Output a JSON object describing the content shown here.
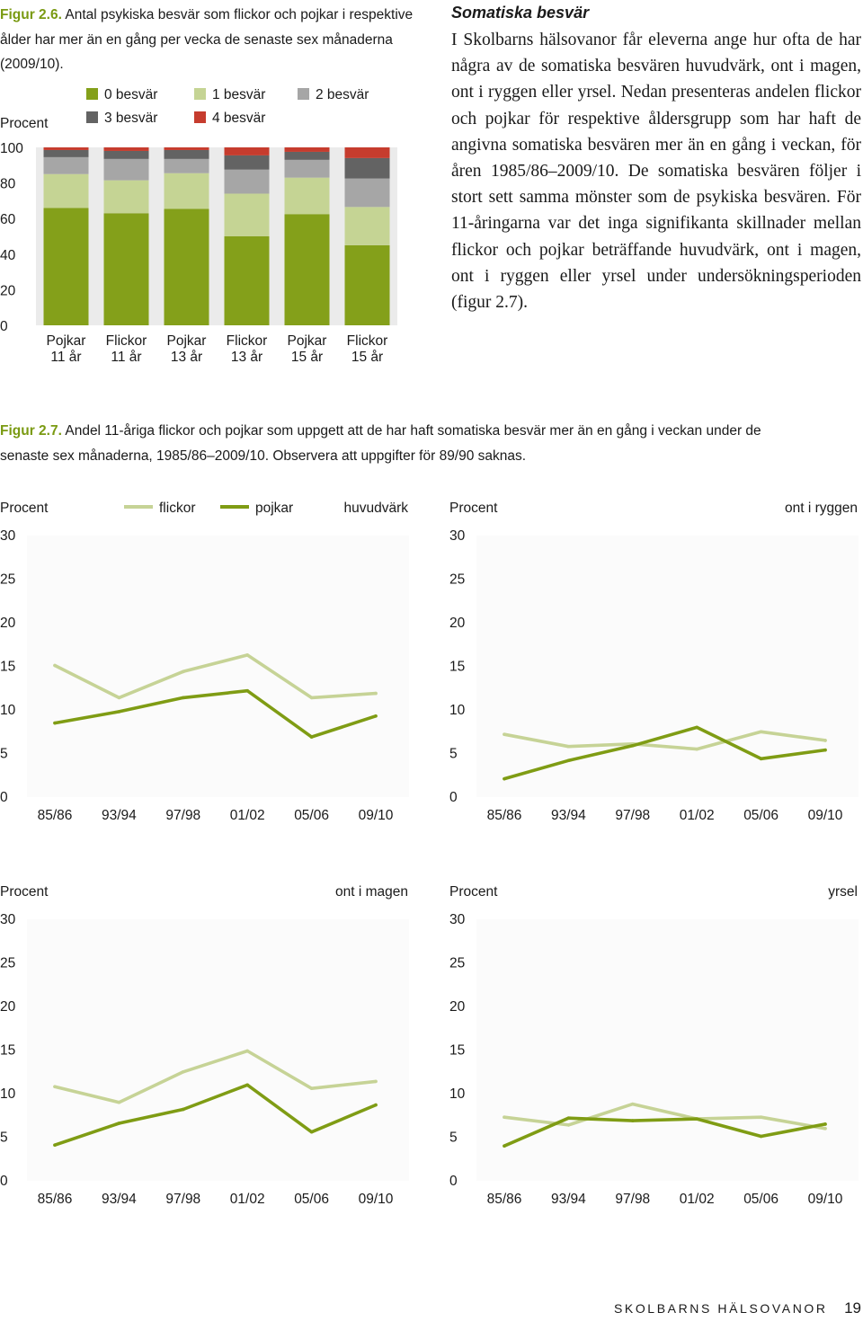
{
  "fig26": {
    "label": "Figur 2.6.",
    "caption": "Antal psykiska besvär som flickor och pojkar i respektive ålder har mer än en gång per vecka de senaste sex månaderna (2009/10)."
  },
  "article": {
    "heading": "Somatiska besvär",
    "body": "I Skolbarns hälsovanor får eleverna ange hur ofta de har några av de somatiska besvären huvudvärk, ont i magen, ont i ryggen eller yrsel. Nedan presenteras andelen flickor och pojkar för respektive åldersgrupp som har haft de angivna somatiska besvären mer än en gång i veckan, för åren 1985/86–2009/10. De somatiska besvären följer i stort sett samma mönster som de psykiska besvären. För 11-åringarna var det inga signifikanta skillnader mellan flickor och pojkar beträffande huvudvärk, ont i magen, ont i ryggen eller yrsel under undersökningsperioden (figur 2.7)."
  },
  "fig27": {
    "label": "Figur 2.7.",
    "caption": "Andel 11-åriga flickor och pojkar som uppgett att de har haft somatiska besvär mer än en gång i veckan under de senaste sex månaderna, 1985/86–2009/10. Observera att uppgifter för 89/90 saknas."
  },
  "colors": {
    "c0": "#84a01a",
    "c1": "#c5d494",
    "c2": "#a6a6a6",
    "c3": "#636363",
    "c4": "#c63c2e",
    "flickor": "#c6d396",
    "pojkar": "#7f9c14",
    "grid": "#ebebeb"
  },
  "line_legend": {
    "flickor": "flickor",
    "pojkar": "pojkar"
  },
  "chart_data": [
    {
      "type": "bar",
      "stacked": true,
      "title": "Figur 2.6.",
      "ylabel": "Procent",
      "ylim": [
        0,
        100
      ],
      "yticks": [
        0,
        20,
        40,
        60,
        80,
        100
      ],
      "categories": [
        {
          "line1": "Pojkar",
          "line2": "11 år"
        },
        {
          "line1": "Flickor",
          "line2": "11 år"
        },
        {
          "line1": "Pojkar",
          "line2": "13 år"
        },
        {
          "line1": "Flickor",
          "line2": "13 år"
        },
        {
          "line1": "Pojkar",
          "line2": "15 år"
        },
        {
          "line1": "Flickor",
          "line2": "15 år"
        }
      ],
      "series": [
        {
          "name": "0 besvär",
          "color_key": "c0",
          "values": [
            66,
            63,
            65.5,
            50,
            62.5,
            45
          ]
        },
        {
          "name": "1 besvär",
          "color_key": "c1",
          "values": [
            19,
            18.5,
            20,
            24,
            20.5,
            21.5
          ]
        },
        {
          "name": "2 besvär",
          "color_key": "c2",
          "values": [
            9.5,
            12,
            8,
            13.5,
            10,
            16
          ]
        },
        {
          "name": "3 besvär",
          "color_key": "c3",
          "values": [
            4,
            4.5,
            5,
            8,
            4.5,
            11.5
          ]
        },
        {
          "name": "4 besvär",
          "color_key": "c4",
          "values": [
            1.5,
            2,
            1.5,
            4.5,
            2.5,
            6
          ]
        }
      ]
    },
    {
      "type": "line",
      "title": "huvudvärk",
      "ylabel": "Procent",
      "ylim": [
        0,
        30
      ],
      "yticks": [
        0,
        5,
        10,
        15,
        20,
        25,
        30
      ],
      "x": [
        "85/86",
        "93/94",
        "97/98",
        "01/02",
        "05/06",
        "09/10"
      ],
      "series": [
        {
          "name": "flickor",
          "color_key": "flickor",
          "values": [
            15.1,
            11.4,
            14.4,
            16.3,
            11.4,
            11.9
          ]
        },
        {
          "name": "pojkar",
          "color_key": "pojkar",
          "values": [
            8.5,
            9.8,
            11.4,
            12.2,
            6.9,
            9.3
          ]
        }
      ]
    },
    {
      "type": "line",
      "title": "ont i ryggen",
      "ylabel": "Procent",
      "ylim": [
        0,
        30
      ],
      "yticks": [
        0,
        5,
        10,
        15,
        20,
        25,
        30
      ],
      "x": [
        "85/86",
        "93/94",
        "97/98",
        "01/02",
        "05/06",
        "09/10"
      ],
      "series": [
        {
          "name": "flickor",
          "color_key": "flickor",
          "values": [
            7.2,
            5.8,
            6.1,
            5.5,
            7.5,
            6.5
          ]
        },
        {
          "name": "pojkar",
          "color_key": "pojkar",
          "values": [
            2.1,
            4.2,
            5.9,
            8.0,
            4.4,
            5.4
          ]
        }
      ]
    },
    {
      "type": "line",
      "title": "ont i magen",
      "ylabel": "Procent",
      "ylim": [
        0,
        30
      ],
      "yticks": [
        0,
        5,
        10,
        15,
        20,
        25,
        30
      ],
      "x": [
        "85/86",
        "93/94",
        "97/98",
        "01/02",
        "05/06",
        "09/10"
      ],
      "series": [
        {
          "name": "flickor",
          "color_key": "flickor",
          "values": [
            10.8,
            9.0,
            12.5,
            14.9,
            10.6,
            11.4
          ]
        },
        {
          "name": "pojkar",
          "color_key": "pojkar",
          "values": [
            4.1,
            6.6,
            8.2,
            11.0,
            5.6,
            8.7
          ]
        }
      ]
    },
    {
      "type": "line",
      "title": "yrsel",
      "ylabel": "Procent",
      "ylim": [
        0,
        30
      ],
      "yticks": [
        0,
        5,
        10,
        15,
        20,
        25,
        30
      ],
      "x": [
        "85/86",
        "93/94",
        "97/98",
        "01/02",
        "05/06",
        "09/10"
      ],
      "series": [
        {
          "name": "flickor",
          "color_key": "flickor",
          "values": [
            7.3,
            6.4,
            8.8,
            7.1,
            7.3,
            6.0
          ]
        },
        {
          "name": "pojkar",
          "color_key": "pojkar",
          "values": [
            4.0,
            7.2,
            6.9,
            7.1,
            5.1,
            6.5
          ]
        }
      ]
    }
  ],
  "footer": {
    "title": "SKOLBARNS HÄLSOVANOR",
    "page": "19"
  }
}
